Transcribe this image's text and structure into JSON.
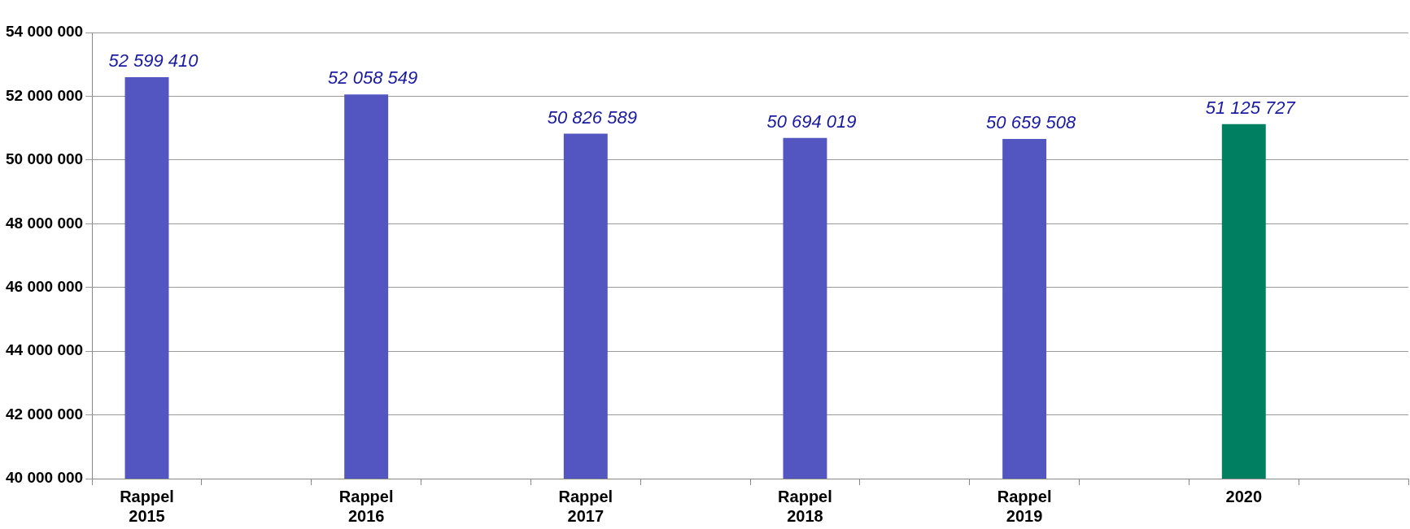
{
  "chart_data": {
    "type": "bar",
    "categories": [
      "Rappel 2015",
      null,
      "Rappel 2016",
      null,
      "Rappel 2017",
      null,
      "Rappel 2018",
      null,
      "Rappel 2019",
      null,
      "2020",
      null
    ],
    "values": [
      52599410,
      null,
      52058549,
      null,
      50826589,
      null,
      50694019,
      null,
      50659508,
      null,
      51125727,
      null
    ],
    "colors": [
      "#5356c0",
      "#5356c0",
      "#5356c0",
      "#5356c0",
      "#5356c0",
      "#5356c0",
      "#5356c0",
      "#5356c0",
      "#5356c0",
      "#5356c0",
      "#008060",
      "#5356c0"
    ],
    "ylim": [
      40000000,
      54000000
    ],
    "yticks": [
      40000000,
      42000000,
      44000000,
      46000000,
      48000000,
      50000000,
      52000000,
      54000000
    ],
    "grid": "y",
    "legend": false,
    "data_labels": true
  }
}
